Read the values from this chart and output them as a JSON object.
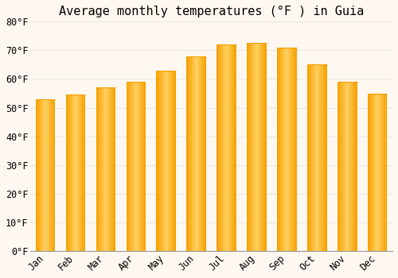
{
  "title": "Average monthly temperatures (°F ) in Guia",
  "months": [
    "Jan",
    "Feb",
    "Mar",
    "Apr",
    "May",
    "Jun",
    "Jul",
    "Aug",
    "Sep",
    "Oct",
    "Nov",
    "Dec"
  ],
  "values": [
    53,
    54.5,
    57,
    59,
    63,
    68,
    72,
    72.5,
    71,
    65,
    59,
    55
  ],
  "bar_color_center": "#FFD060",
  "bar_color_edge": "#F5A000",
  "ylim": [
    0,
    80
  ],
  "yticks": [
    0,
    10,
    20,
    30,
    40,
    50,
    60,
    70,
    80
  ],
  "ytick_labels": [
    "0°F",
    "10°F",
    "20°F",
    "30°F",
    "40°F",
    "50°F",
    "60°F",
    "70°F",
    "80°F"
  ],
  "background_color": "#FFF8F0",
  "grid_color": "#E8E8E8",
  "title_fontsize": 11,
  "tick_fontsize": 8.5
}
